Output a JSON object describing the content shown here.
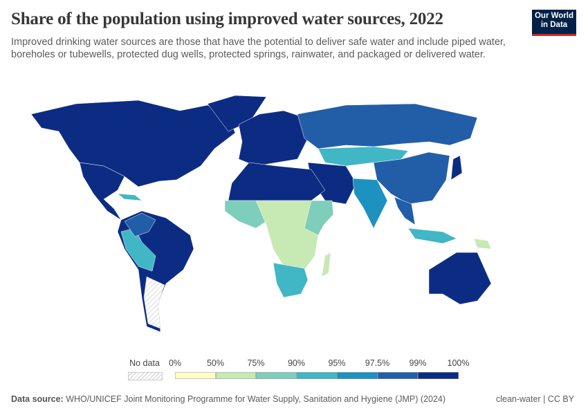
{
  "header": {
    "title": "Share of the population using improved water sources, 2022",
    "subtitle": "Improved drinking water sources are those that have the potential to deliver safe water and include piped water, boreholes or tubewells, protected dug wells, protected springs, rainwater, and packaged or delivered water.",
    "logo": "Our World in Data"
  },
  "legend": {
    "no_data_label": "No data",
    "ticks": [
      "0%",
      "50%",
      "75%",
      "90%",
      "95%",
      "97.5%",
      "99%",
      "100%"
    ],
    "bins": [
      {
        "range": "0–50%",
        "color": "#fefec8"
      },
      {
        "range": "50–75%",
        "color": "#c7e9b4"
      },
      {
        "range": "75–90%",
        "color": "#7fcdbb"
      },
      {
        "range": "90–95%",
        "color": "#41b6c4"
      },
      {
        "range": "95–97.5%",
        "color": "#1d91c0"
      },
      {
        "range": "97.5–99%",
        "color": "#225ea8"
      },
      {
        "range": "99–100%",
        "color": "#0c2c84"
      }
    ]
  },
  "footer": {
    "source_label": "Data source:",
    "source": "WHO/UNICEF Joint Monitoring Programme for Water Supply, Sanitation and Hygiene (JMP) (2024)",
    "slug": "clean-water | CC BY"
  }
}
